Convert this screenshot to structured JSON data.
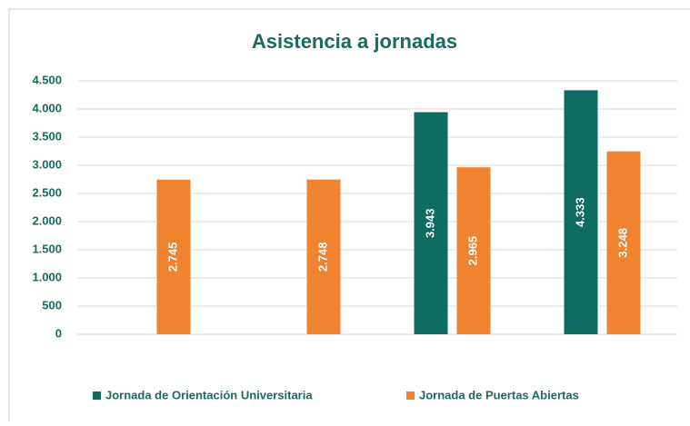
{
  "chart_data": {
    "type": "bar",
    "title": "Asistencia a jornadas",
    "categories": [
      null,
      null,
      null,
      null
    ],
    "series": [
      {
        "name": "Jornada de Orientación Universitaria",
        "color": "#0d6b5f",
        "values": [
          null,
          null,
          3943,
          4333
        ],
        "value_labels": [
          null,
          null,
          "3.943",
          "4.333"
        ]
      },
      {
        "name": "Jornada de Puertas Abiertas",
        "color": "#f08330",
        "values": [
          2745,
          2748,
          2965,
          3248
        ],
        "value_labels": [
          "2.745",
          "2.748",
          "2.965",
          "3.248"
        ]
      }
    ],
    "ylim": [
      0,
      4500
    ],
    "yticks": [
      0,
      500,
      {
        "value": 1000,
        "label": "1.000"
      },
      {
        "value": 1500,
        "label": "1.500"
      },
      {
        "value": 2000,
        "label": "2.000"
      },
      {
        "value": 2500,
        "label": "2.500"
      },
      {
        "value": 3000,
        "label": "3.000"
      },
      {
        "value": 3500,
        "label": "3.500"
      },
      {
        "value": 4000,
        "label": "4.000"
      },
      {
        "value": 4500,
        "label": "4.500"
      }
    ],
    "grid": true,
    "legend": "bottom"
  }
}
